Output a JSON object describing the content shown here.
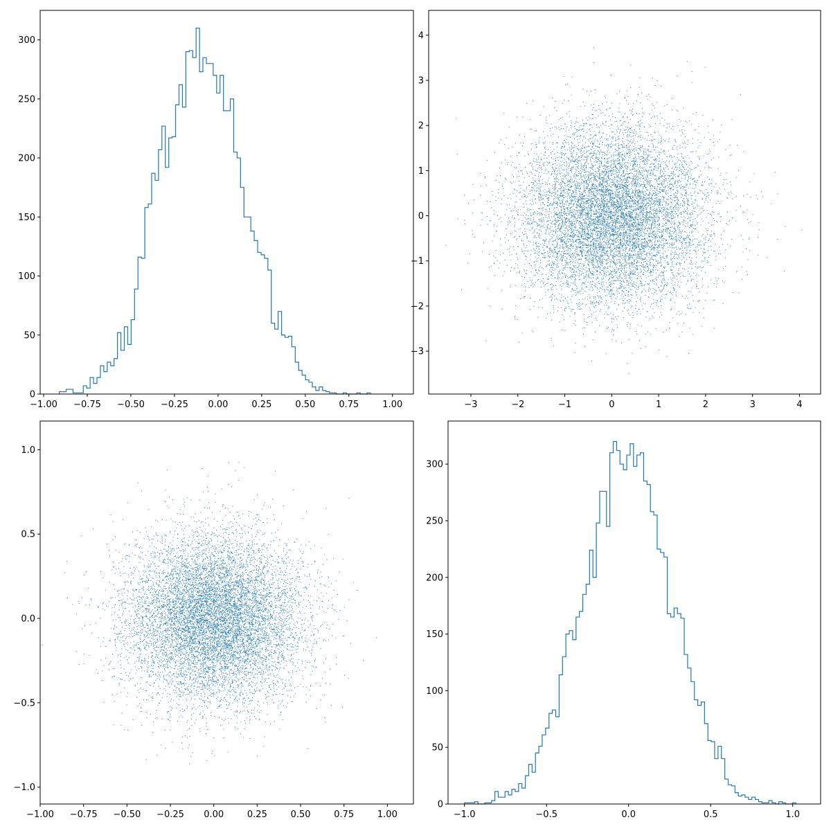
{
  "chart_data": [
    {
      "type": "histogram",
      "histtype": "step",
      "color": "#1f77b4",
      "xlim": [
        -1.02,
        1.12
      ],
      "ylim": [
        0,
        325
      ],
      "xticks": [
        -1.0,
        -0.75,
        -0.5,
        -0.25,
        0.0,
        0.25,
        0.5,
        0.75,
        1.0
      ],
      "xtick_labels": [
        "−1.00",
        "−0.75",
        "−0.50",
        "−0.25",
        "0.00",
        "0.25",
        "0.50",
        "0.75",
        "1.00"
      ],
      "yticks": [
        0,
        50,
        100,
        150,
        200,
        250,
        300
      ],
      "ytick_labels": [
        "0",
        "50",
        "100",
        "150",
        "200",
        "250",
        "300"
      ],
      "bins": {
        "start": -0.91,
        "width": 0.0196
      },
      "counts": [
        2,
        2,
        4,
        4,
        1,
        1,
        1,
        7,
        5,
        14,
        9,
        14,
        24,
        19,
        27,
        24,
        30,
        52,
        37,
        57,
        42,
        63,
        89,
        116,
        115,
        158,
        161,
        187,
        181,
        207,
        227,
        192,
        217,
        218,
        245,
        262,
        243,
        290,
        291,
        285,
        310,
        273,
        285,
        280,
        280,
        270,
        255,
        270,
        240,
        240,
        250,
        205,
        200,
        175,
        150,
        150,
        138,
        130,
        120,
        118,
        115,
        105,
        60,
        55,
        70,
        50,
        48,
        49,
        40,
        27,
        20,
        16,
        12,
        10,
        6,
        3,
        6,
        3,
        2,
        1,
        1,
        0,
        0,
        1,
        0,
        0,
        0,
        1,
        0,
        0,
        1
      ]
    },
    {
      "type": "scatter",
      "marker": "pixel",
      "color": "#1f77b4",
      "n_points": 10000,
      "distribution": {
        "mean": [
          0,
          0
        ],
        "std": [
          1,
          1
        ]
      },
      "xlim": [
        -3.9,
        4.45
      ],
      "ylim": [
        -3.95,
        4.55
      ],
      "xticks": [
        -3,
        -2,
        -1,
        0,
        1,
        2,
        3,
        4
      ],
      "xtick_labels": [
        "−3",
        "−2",
        "−1",
        "0",
        "1",
        "2",
        "3",
        "4"
      ],
      "yticks": [
        -3,
        -2,
        -1,
        0,
        1,
        2,
        3,
        4
      ],
      "ytick_labels": [
        "−3",
        "−2",
        "−1",
        "0",
        "1",
        "2",
        "3",
        "4"
      ]
    },
    {
      "type": "scatter",
      "marker": "pixel",
      "color": "#1f77b4",
      "n_points": 10000,
      "distribution": {
        "mean": [
          0,
          0
        ],
        "std": [
          0.25,
          0.25
        ]
      },
      "xlim": [
        -1.0,
        1.15
      ],
      "ylim": [
        -1.1,
        1.17
      ],
      "xticks": [
        -1.0,
        -0.75,
        -0.5,
        -0.25,
        0.0,
        0.25,
        0.5,
        0.75,
        1.0
      ],
      "xtick_labels": [
        "−1.00",
        "−0.75",
        "−0.50",
        "−0.25",
        "0.00",
        "0.25",
        "0.50",
        "0.75",
        "1.00"
      ],
      "yticks": [
        -1.0,
        -0.5,
        0.0,
        0.5,
        1.0
      ],
      "ytick_labels": [
        "−1.0",
        "−0.5",
        "0.0",
        "0.5",
        "1.0"
      ]
    },
    {
      "type": "histogram",
      "histtype": "step",
      "color": "#1f77b4",
      "xlim": [
        -1.1,
        1.17
      ],
      "ylim": [
        0,
        338
      ],
      "xticks": [
        -1.0,
        -0.5,
        0.0,
        0.5,
        1.0
      ],
      "xtick_labels": [
        "−1.0",
        "−0.5",
        "0.0",
        "0.5",
        "1.0"
      ],
      "yticks": [
        0,
        50,
        100,
        150,
        200,
        250,
        300
      ],
      "ytick_labels": [
        "0",
        "50",
        "100",
        "150",
        "200",
        "250",
        "300"
      ],
      "bins": {
        "start": -1.0,
        "width": 0.0206
      },
      "counts": [
        1,
        1,
        1,
        2,
        0,
        0,
        1,
        1,
        3,
        11,
        6,
        6,
        11,
        8,
        13,
        11,
        18,
        14,
        25,
        35,
        28,
        45,
        51,
        61,
        67,
        80,
        83,
        77,
        114,
        130,
        150,
        153,
        145,
        165,
        170,
        185,
        194,
        224,
        200,
        248,
        276,
        276,
        245,
        310,
        320,
        312,
        300,
        295,
        308,
        318,
        298,
        308,
        310,
        285,
        282,
        258,
        255,
        225,
        222,
        218,
        168,
        165,
        173,
        168,
        164,
        132,
        120,
        108,
        92,
        87,
        90,
        71,
        56,
        55,
        40,
        51,
        40,
        22,
        17,
        16,
        10,
        7,
        8,
        6,
        4,
        6,
        4,
        2,
        1,
        1,
        3,
        1,
        0,
        2,
        1,
        0,
        0,
        1
      ]
    }
  ]
}
